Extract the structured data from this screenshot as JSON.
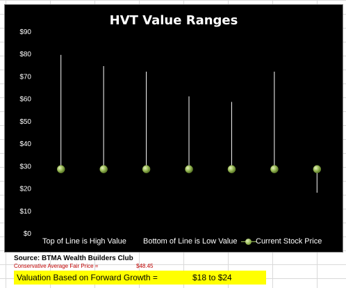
{
  "chart_data": {
    "type": "scatter",
    "title": "HVT Value Ranges",
    "ylim": [
      0,
      90
    ],
    "yticks": [
      "$0",
      "$10",
      "$20",
      "$30",
      "$40",
      "$50",
      "$60",
      "$70",
      "$80",
      "$90"
    ],
    "series": [
      {
        "name": "Current Stock Price",
        "values": [
          28.5,
          28.5,
          28.5,
          28.5,
          28.5,
          28.5,
          28.5
        ]
      }
    ],
    "ranges": [
      {
        "high": 79.5,
        "low": 28.5
      },
      {
        "high": 74.5,
        "low": 28.5
      },
      {
        "high": 72,
        "low": 28.5
      },
      {
        "high": 61,
        "low": 28.5
      },
      {
        "high": 58.5,
        "low": 28.5
      },
      {
        "high": 72,
        "low": 28.5
      },
      {
        "high": 28.5,
        "low": 18
      }
    ],
    "grid": false,
    "legend_position": "bottom",
    "colors": {
      "background": "#000000",
      "range_line": "#ffffff",
      "marker": "#9bbb59"
    }
  },
  "legend": {
    "high_label": "Top of Line is High Value",
    "low_label": "Bottom of Line is Low Value",
    "price_label": "Current Stock Price"
  },
  "sheet": {
    "source": "Source: BTMA Wealth Builders Club",
    "fair_price_label": "Conservative Average Fair Price =",
    "fair_price_value": "$48.45",
    "valuation_label": "Valuation Based on Forward Growth =",
    "valuation_value": "$18 to $24"
  }
}
